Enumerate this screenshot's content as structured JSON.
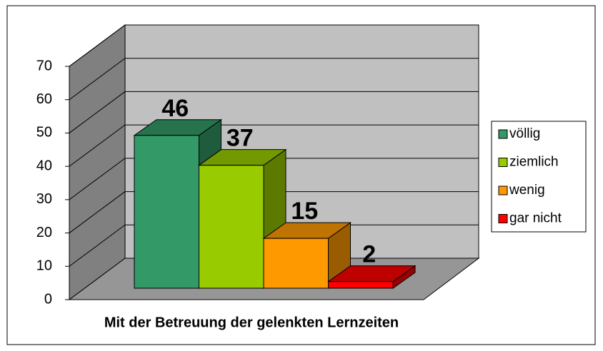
{
  "chart_data": {
    "type": "bar3d",
    "xlabel": "Mit der Betreuung der gelenkten Lernzeiten",
    "categories": [
      null
    ],
    "series": [
      {
        "name": "völlig",
        "color": "#339966",
        "values": [
          46
        ]
      },
      {
        "name": "ziemlich",
        "color": "#99cc00",
        "values": [
          37
        ]
      },
      {
        "name": "wenig",
        "color": "#ff9900",
        "values": [
          15
        ]
      },
      {
        "name": "gar nicht",
        "color": "#ff0000",
        "values": [
          2
        ]
      }
    ],
    "ylim": [
      0,
      70
    ],
    "yticks": [
      0,
      10,
      20,
      30,
      40,
      50,
      60,
      70
    ],
    "grid": true,
    "legend": "right"
  }
}
